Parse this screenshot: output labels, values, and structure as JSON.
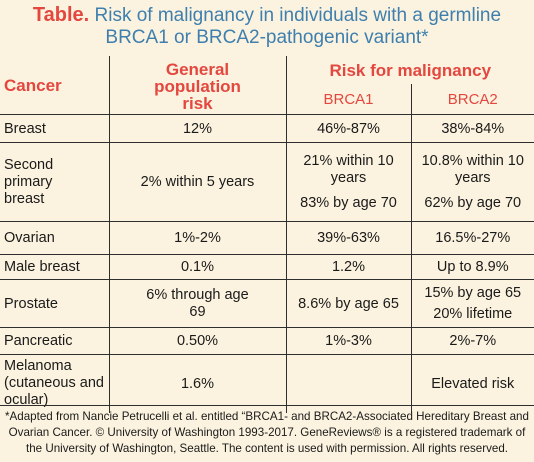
{
  "title": {
    "label": "Table.",
    "line1": "Risk of malignancy in individuals with a germline",
    "line2": "BRCA1 or BRCA2-pathogenic variant*"
  },
  "headers": {
    "cancer": "Cancer",
    "general_line1": "General",
    "general_line2": "population",
    "general_line3": "risk",
    "risk": "Risk for malignancy",
    "brca1": "BRCA1",
    "brca2": "BRCA2"
  },
  "rows": [
    {
      "cancer": "Breast",
      "general": "12%",
      "brca1": "46%-87%",
      "brca2": "38%-84%"
    },
    {
      "cancer_line1": "Second primary",
      "cancer_line2": "breast",
      "general": "2% within 5 years",
      "brca1_a": "21% within 10",
      "brca1_b": "years",
      "brca1_c": "83% by age 70",
      "brca2_a": "10.8% within 10",
      "brca2_b": "years",
      "brca2_c": "62% by age 70"
    },
    {
      "cancer": "Ovarian",
      "general": "1%-2%",
      "brca1": "39%-63%",
      "brca2": "16.5%-27%"
    },
    {
      "cancer": "Male breast",
      "general": "0.1%",
      "brca1": "1.2%",
      "brca2": "Up to 8.9%"
    },
    {
      "cancer": "Prostate",
      "general_line1": "6% through age",
      "general_line2": "69",
      "brca1": "8.6% by age 65",
      "brca2_a": "15% by age 65",
      "brca2_b": "20% lifetime"
    },
    {
      "cancer": "Pancreatic",
      "general": "0.50%",
      "brca1": "1%-3%",
      "brca2": "2%-7%"
    },
    {
      "cancer_line1": "Melanoma",
      "cancer_line2": "(cutaneous and",
      "cancer_line3": "ocular)",
      "general": "1.6%",
      "brca1": "",
      "brca2": "Elevated risk"
    }
  ],
  "footnote": {
    "line1": "*Adapted from Nancie Petrucelli  et al. entitled “BRCA1- and BRCA2-Associated Hereditary Breast and",
    "line2": "Ovarian Cancer. © University of Washington 1993-2017. GeneReviews® is a registered trademark of",
    "line3": "the University of Washington, Seattle. The content is used with permission. All rights reserved."
  }
}
